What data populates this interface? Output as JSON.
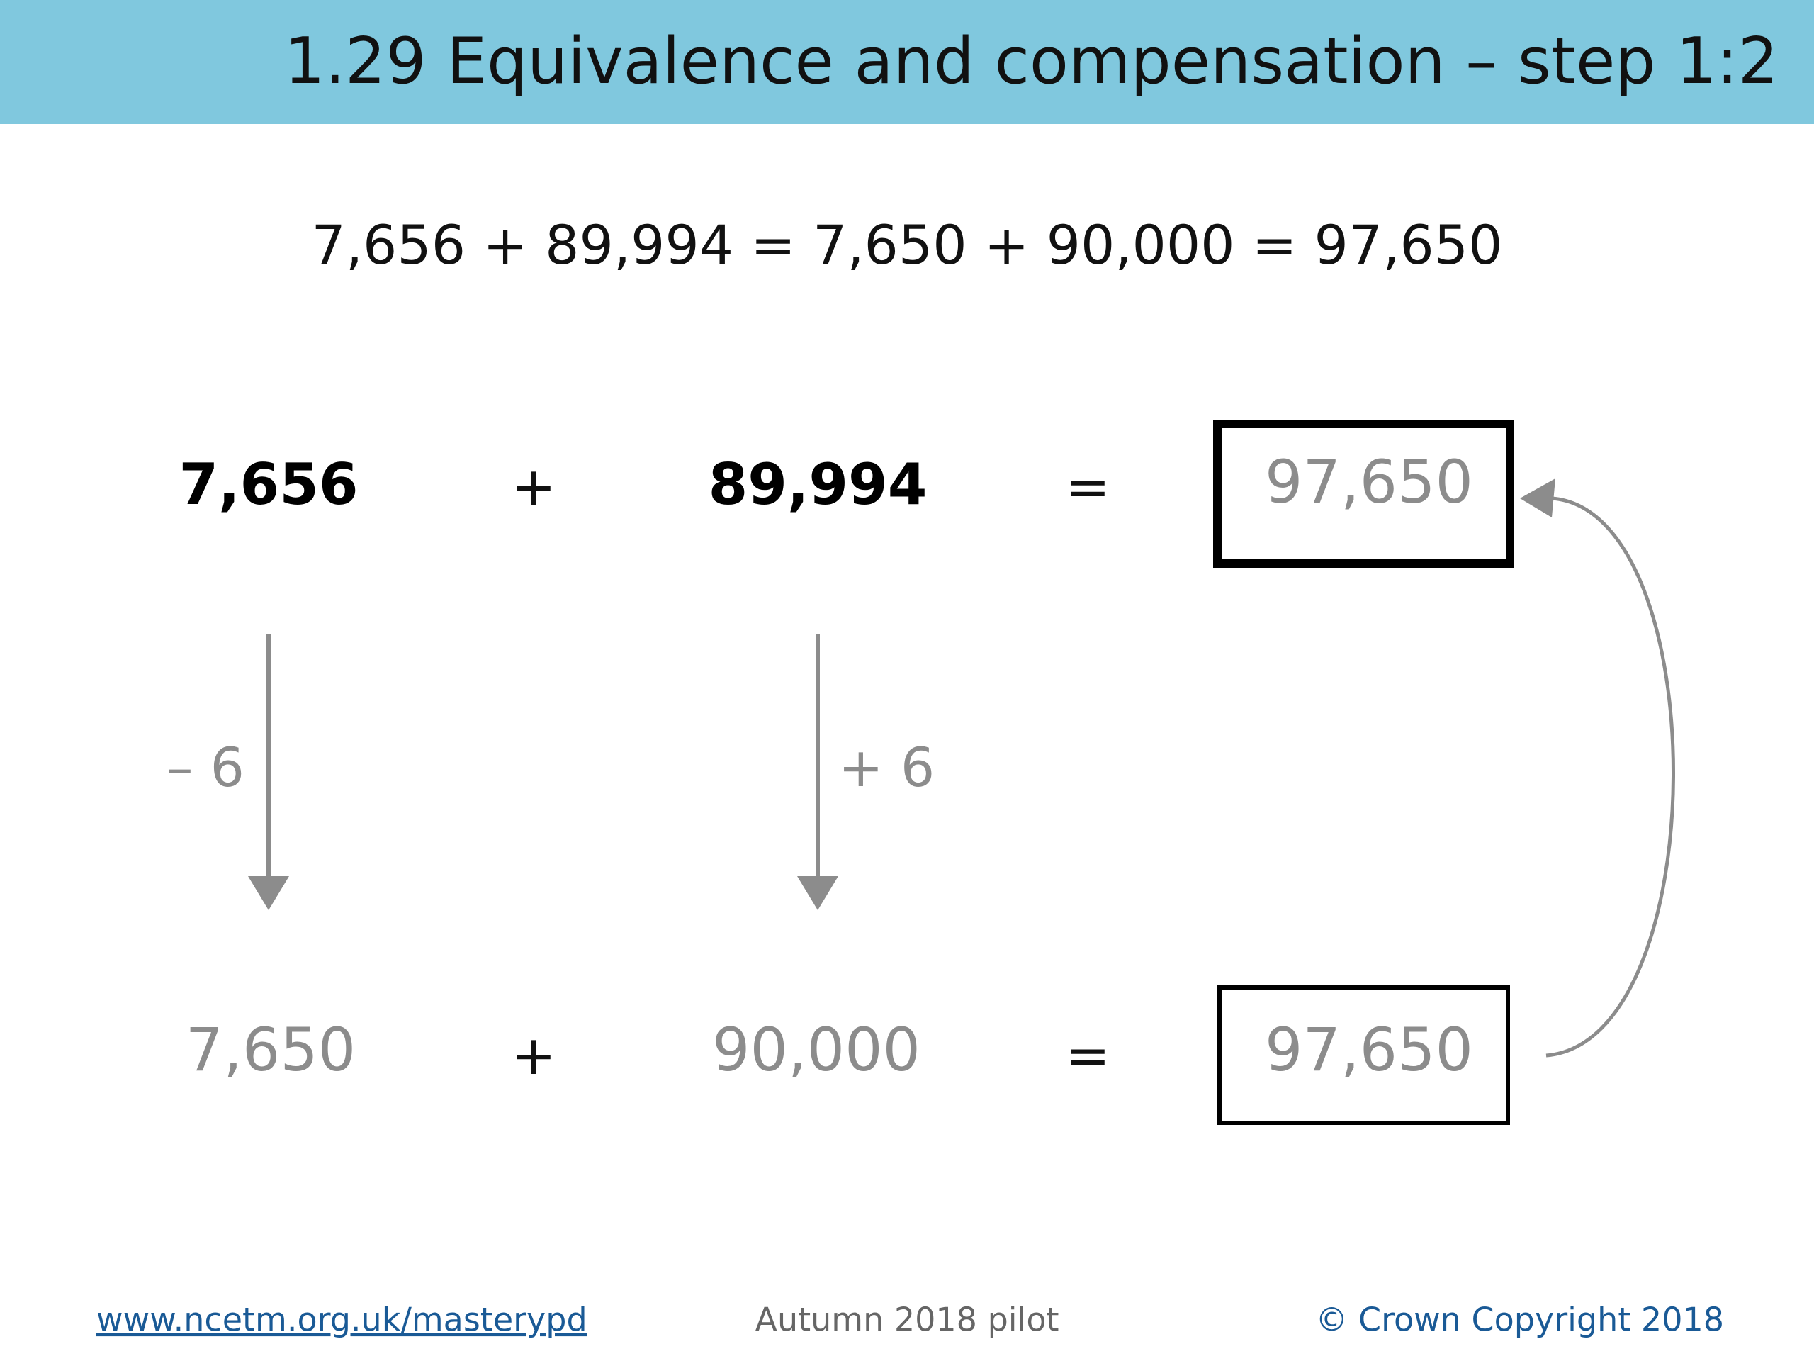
{
  "header": {
    "title": "1.29 Equivalence and compensation – step 1:2"
  },
  "equation": "7,656 + 89,994 = 7,650 + 90,000 = 97,650",
  "row1": {
    "addend1": "7,656",
    "plus": "+",
    "addend2": "89,994",
    "equals": "=",
    "result": "97,650"
  },
  "operations": {
    "left": "– 6",
    "right": "+ 6"
  },
  "row2": {
    "addend1": "7,650",
    "plus": "+",
    "addend2": "90,000",
    "equals": "=",
    "result": "97,650"
  },
  "footer": {
    "link": "www.ncetm.org.uk/masterypd",
    "center": "Autumn 2018 pilot",
    "copyright": "© Crown Copyright 2018"
  }
}
